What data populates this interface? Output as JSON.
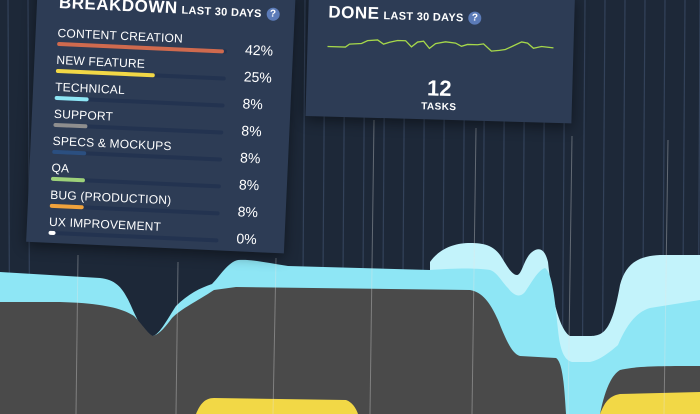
{
  "breakdown": {
    "title": "BREAKDOWN",
    "subtitle": "LAST 30 DAYS",
    "help": "?",
    "items": [
      {
        "label": "CONTENT CREATION",
        "percent": "42%",
        "fraction": 0.98,
        "color": "#cf6a4e"
      },
      {
        "label": "NEW FEATURE",
        "percent": "25%",
        "fraction": 0.58,
        "color": "#f2d846"
      },
      {
        "label": "TECHNICAL",
        "percent": "8%",
        "fraction": 0.2,
        "color": "#8ee6f5"
      },
      {
        "label": "SUPPORT",
        "percent": "8%",
        "fraction": 0.2,
        "color": "#8e8e8e"
      },
      {
        "label": "SPECS & MOCKUPS",
        "percent": "8%",
        "fraction": 0.2,
        "color": "#2b4f80"
      },
      {
        "label": "QA",
        "percent": "8%",
        "fraction": 0.2,
        "color": "#9dd17a"
      },
      {
        "label": "BUG (PRODUCTION)",
        "percent": "8%",
        "fraction": 0.2,
        "color": "#f0a23c"
      },
      {
        "label": "UX IMPROVEMENT",
        "percent": "0%",
        "fraction": 0.04,
        "color": "#ffffff"
      }
    ]
  },
  "done": {
    "title": "DONE",
    "subtitle": "LAST 30 DAYS",
    "help": "?",
    "count": "12",
    "count_label": "TASKS",
    "sparkline_color": "#a6d84a"
  },
  "colors": {
    "background": "#1d2838",
    "panel": "#2d3c55",
    "area_cyan": "#8ee6f5",
    "area_gray": "#4a4a4a",
    "area_yellow": "#f2d846"
  }
}
